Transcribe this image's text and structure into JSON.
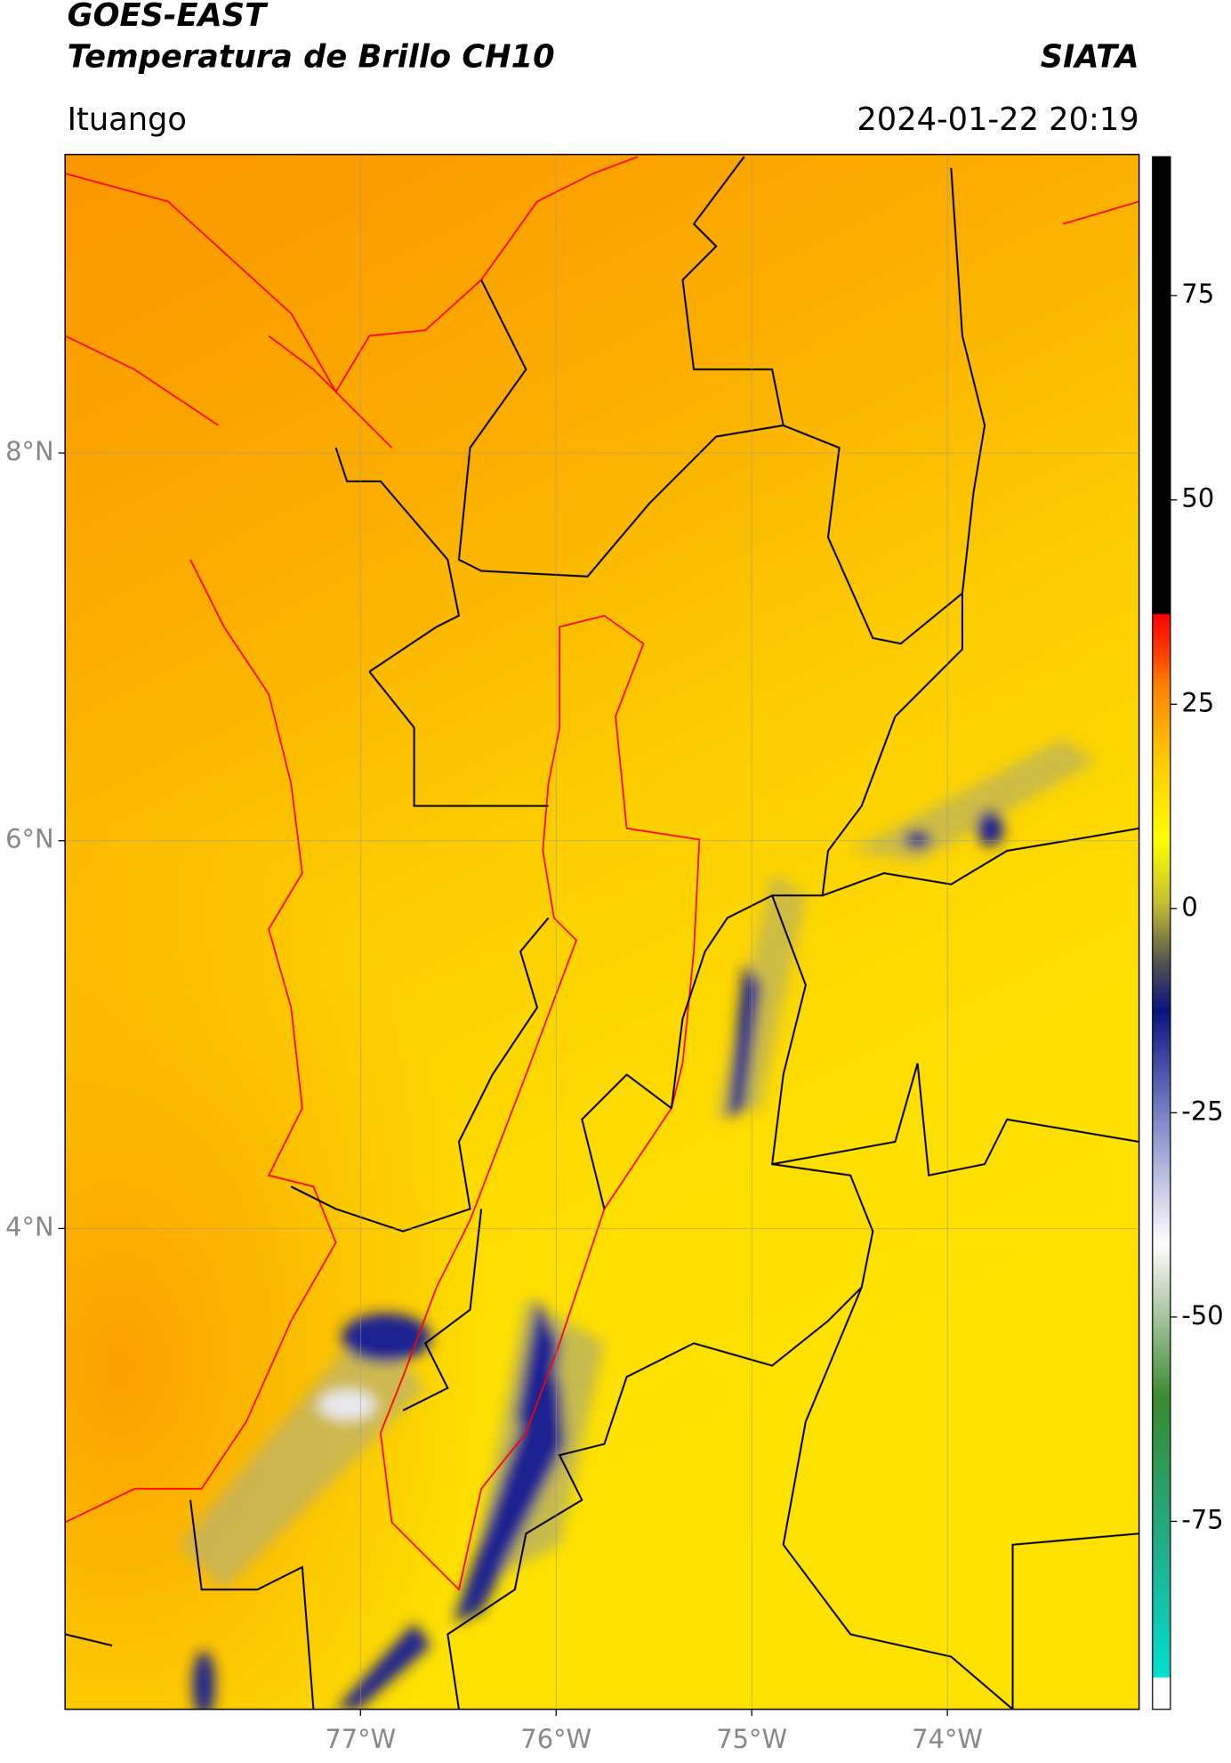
{
  "chart_data": {
    "type": "map",
    "title": "GOES-EAST",
    "subtitle": "Temperatura de Brillo CH10",
    "source": "SIATA",
    "region": "Ituango",
    "datetime": "2024-01-22 20:19",
    "xlim": [
      -78.51,
      -73.02
    ],
    "ylim": [
      1.52,
      9.54
    ],
    "xticks": [
      {
        "value": -77,
        "label": "77°W"
      },
      {
        "value": -76,
        "label": "76°W"
      },
      {
        "value": -75,
        "label": "75°W"
      },
      {
        "value": -74,
        "label": "74°W"
      }
    ],
    "yticks": [
      {
        "value": 4,
        "label": "4°N"
      },
      {
        "value": 6,
        "label": "6°N"
      },
      {
        "value": 8,
        "label": "8°N"
      }
    ],
    "grid": true,
    "clim": [
      -98,
      92
    ],
    "cticks": [
      75,
      50,
      25,
      0,
      -25,
      -50,
      -75
    ]
  }
}
